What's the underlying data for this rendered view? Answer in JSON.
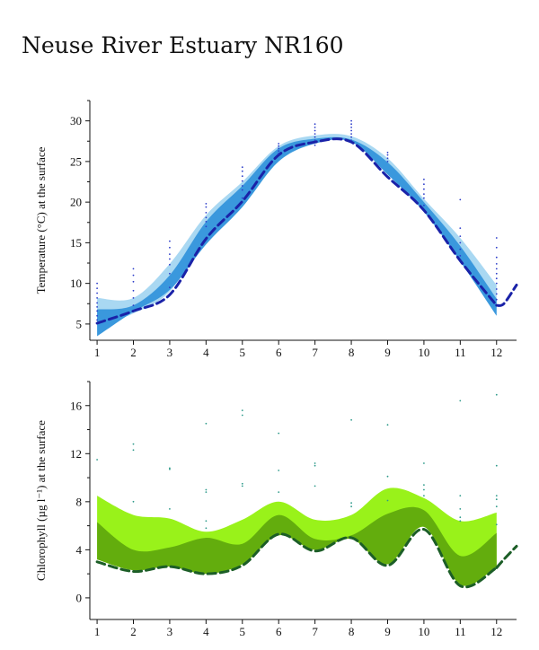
{
  "page": {
    "title": "Neuse River Estuary NR160"
  },
  "chart_data": [
    {
      "type": "area",
      "ylabel": "Temperature (°C) at the surface",
      "xlim": [
        0.8,
        12.55
      ],
      "ylim": [
        3.0,
        32.5
      ],
      "x_ticks": [
        1,
        2,
        3,
        4,
        5,
        6,
        7,
        8,
        9,
        10,
        11,
        12
      ],
      "y_ticks": [
        5,
        10,
        15,
        20,
        25,
        30
      ],
      "colors": {
        "band_outer": "#a9d8f2",
        "band_inner": "#3a98dd",
        "median": "#1a22a8",
        "points": "#2b3cc9"
      },
      "x": [
        1,
        2,
        3,
        4,
        5,
        6,
        7,
        8,
        9,
        10,
        11,
        12
      ],
      "series": [
        {
          "role": "band_outer",
          "lower": [
            4.8,
            6.3,
            9.0,
            15.8,
            20.0,
            25.6,
            27.4,
            27.5,
            24.2,
            19.5,
            13.6,
            7.2
          ],
          "upper": [
            8.2,
            8.2,
            12.4,
            18.4,
            22.5,
            26.9,
            28.2,
            28.1,
            25.4,
            20.4,
            15.6,
            9.8
          ]
        },
        {
          "role": "band_inner",
          "lower": [
            3.5,
            6.5,
            9.2,
            14.8,
            19.4,
            25.0,
            27.2,
            27.4,
            23.4,
            18.8,
            12.7,
            6.0
          ],
          "upper": [
            6.8,
            7.3,
            11.0,
            17.6,
            22.0,
            26.6,
            27.8,
            27.7,
            24.9,
            20.0,
            14.6,
            8.1
          ]
        },
        {
          "role": "median",
          "values": [
            5.1,
            6.6,
            8.6,
            15.5,
            20.1,
            25.8,
            27.4,
            27.4,
            23.1,
            19.0,
            12.8,
            7.3
          ],
          "extension": [
            [
              12.2,
              7.5
            ],
            [
              12.55,
              9.8
            ]
          ]
        }
      ],
      "points": [
        [
          1,
          5.5
        ],
        [
          1,
          6.0
        ],
        [
          1,
          6.6
        ],
        [
          1,
          7.1
        ],
        [
          1,
          7.6
        ],
        [
          1,
          8.2
        ],
        [
          1,
          8.8
        ],
        [
          1,
          9.4
        ],
        [
          1,
          10.0
        ],
        [
          2,
          7.3
        ],
        [
          2,
          8.2
        ],
        [
          2,
          9.1
        ],
        [
          2,
          10.2
        ],
        [
          2,
          11.0
        ],
        [
          2,
          11.8
        ],
        [
          3,
          9.5
        ],
        [
          3,
          11.2
        ],
        [
          3,
          12.3
        ],
        [
          3,
          13.0
        ],
        [
          3,
          13.6
        ],
        [
          3,
          14.4
        ],
        [
          3,
          15.2
        ],
        [
          4,
          17.0
        ],
        [
          4,
          17.6
        ],
        [
          4,
          18.1
        ],
        [
          4,
          18.7
        ],
        [
          4,
          19.4
        ],
        [
          4,
          19.8
        ],
        [
          5,
          20.5
        ],
        [
          5,
          21.5
        ],
        [
          5,
          22.0
        ],
        [
          5,
          22.6
        ],
        [
          5,
          23.2
        ],
        [
          5,
          23.8
        ],
        [
          5,
          24.3
        ],
        [
          6,
          26.0
        ],
        [
          6,
          26.3
        ],
        [
          6,
          26.6
        ],
        [
          6,
          26.9
        ],
        [
          6,
          27.2
        ],
        [
          7,
          27.0
        ],
        [
          7,
          27.6
        ],
        [
          7,
          28.0
        ],
        [
          7,
          28.4
        ],
        [
          7,
          28.8
        ],
        [
          7,
          29.2
        ],
        [
          7,
          29.6
        ],
        [
          8,
          27.6
        ],
        [
          8,
          28.0
        ],
        [
          8,
          28.4
        ],
        [
          8,
          28.8
        ],
        [
          8,
          29.2
        ],
        [
          8,
          29.6
        ],
        [
          8,
          30.0
        ],
        [
          9,
          25.0
        ],
        [
          9,
          25.4
        ],
        [
          9,
          25.8
        ],
        [
          9,
          26.1
        ],
        [
          10,
          19.6
        ],
        [
          10,
          20.5
        ],
        [
          10,
          21.0
        ],
        [
          10,
          21.6
        ],
        [
          10,
          22.2
        ],
        [
          10,
          22.8
        ],
        [
          11,
          13.4
        ],
        [
          11,
          14.2
        ],
        [
          11,
          15.0
        ],
        [
          11,
          15.8
        ],
        [
          11,
          16.8
        ],
        [
          11,
          20.3
        ],
        [
          12,
          8.0
        ],
        [
          12,
          8.7
        ],
        [
          12,
          9.3
        ],
        [
          12,
          10.0
        ],
        [
          12,
          10.6
        ],
        [
          12,
          11.2
        ],
        [
          12,
          11.8
        ],
        [
          12,
          12.4
        ],
        [
          12,
          13.2
        ],
        [
          12,
          14.4
        ],
        [
          12,
          15.6
        ]
      ]
    },
    {
      "type": "area",
      "ylabel": "Chlorophyll (µg l⁻¹) at the surface",
      "xlim": [
        0.8,
        12.55
      ],
      "ylim": [
        -1.8,
        18.0
      ],
      "x_ticks": [
        1,
        2,
        3,
        4,
        5,
        6,
        7,
        8,
        9,
        10,
        11,
        12
      ],
      "y_ticks": [
        0,
        4,
        8,
        12,
        16
      ],
      "colors": {
        "band_outer": "#99f21a",
        "band_inner": "#63ad0d",
        "median": "#1c5e27",
        "points": "#2d9a8a"
      },
      "x": [
        1,
        2,
        3,
        4,
        5,
        6,
        7,
        8,
        9,
        10,
        11,
        12
      ],
      "series": [
        {
          "role": "band_outer",
          "lower": [
            3.2,
            2.3,
            2.6,
            2.0,
            2.8,
            5.2,
            4.0,
            4.9,
            2.8,
            5.9,
            1.1,
            2.6
          ],
          "upper": [
            8.5,
            6.9,
            6.6,
            5.5,
            6.5,
            8.0,
            6.5,
            6.9,
            9.1,
            8.3,
            6.4,
            7.1
          ]
        },
        {
          "role": "band_inner",
          "lower": [
            3.2,
            2.3,
            2.6,
            2.0,
            2.8,
            5.2,
            4.0,
            4.9,
            2.8,
            5.9,
            1.1,
            2.6
          ],
          "upper": [
            6.3,
            4.0,
            4.2,
            5.0,
            4.5,
            6.9,
            4.9,
            5.2,
            7.0,
            7.3,
            3.5,
            5.4
          ]
        },
        {
          "role": "median",
          "values": [
            3.0,
            2.2,
            2.6,
            2.0,
            2.7,
            5.3,
            3.9,
            5.0,
            2.7,
            5.7,
            1.0,
            2.5
          ],
          "extension": [
            [
              12.2,
              3.2
            ],
            [
              12.55,
              4.3
            ]
          ]
        }
      ],
      "points": [
        [
          1,
          11.5
        ],
        [
          2,
          12.3
        ],
        [
          2,
          12.8
        ],
        [
          2,
          8.0
        ],
        [
          3,
          10.7
        ],
        [
          3,
          10.8
        ],
        [
          3,
          7.4
        ],
        [
          4,
          14.5
        ],
        [
          4,
          8.8
        ],
        [
          4,
          9.0
        ],
        [
          4,
          6.4
        ],
        [
          4,
          5.8
        ],
        [
          5,
          15.2
        ],
        [
          5,
          15.6
        ],
        [
          5,
          9.3
        ],
        [
          5,
          9.5
        ],
        [
          6,
          13.7
        ],
        [
          6,
          10.6
        ],
        [
          6,
          8.8
        ],
        [
          7,
          11.0
        ],
        [
          7,
          11.2
        ],
        [
          7,
          9.3
        ],
        [
          8,
          14.8
        ],
        [
          8,
          7.6
        ],
        [
          8,
          7.9
        ],
        [
          9,
          14.4
        ],
        [
          9,
          10.1
        ],
        [
          9,
          8.1
        ],
        [
          10,
          11.2
        ],
        [
          10,
          9.4
        ],
        [
          10,
          9.0
        ],
        [
          10,
          8.5
        ],
        [
          11,
          16.4
        ],
        [
          11,
          8.5
        ],
        [
          11,
          7.4
        ],
        [
          11,
          6.7
        ],
        [
          11,
          6.4
        ],
        [
          12,
          16.9
        ],
        [
          12,
          11.0
        ],
        [
          12,
          8.5
        ],
        [
          12,
          8.2
        ],
        [
          12,
          7.6
        ],
        [
          12,
          6.1
        ]
      ]
    }
  ]
}
